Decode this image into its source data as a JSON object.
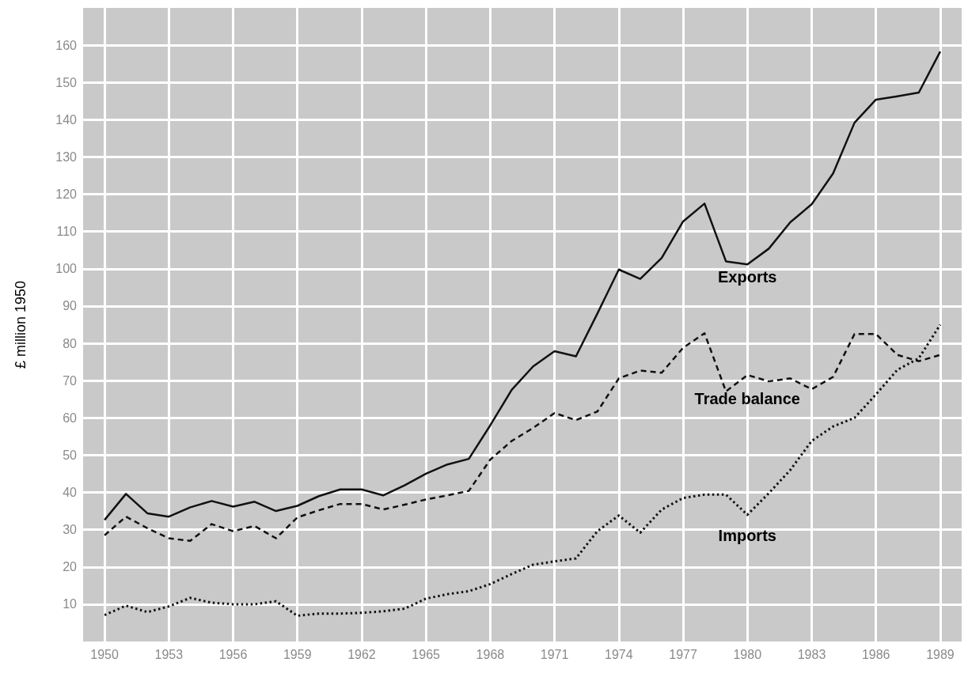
{
  "chart_data": {
    "type": "line",
    "ylabel": "£ million 1950",
    "x": [
      1950,
      1951,
      1952,
      1953,
      1954,
      1955,
      1956,
      1957,
      1958,
      1959,
      1960,
      1961,
      1962,
      1963,
      1964,
      1965,
      1966,
      1967,
      1968,
      1969,
      1970,
      1971,
      1972,
      1973,
      1974,
      1975,
      1976,
      1977,
      1978,
      1979,
      1980,
      1981,
      1982,
      1983,
      1984,
      1985,
      1986,
      1987,
      1988,
      1989
    ],
    "series": [
      {
        "name": "Exports",
        "color": "#111111",
        "line_style": "solid",
        "values": [
          32.6,
          39.6,
          34.4,
          33.5,
          36,
          37.7,
          36.2,
          37.5,
          35,
          36.4,
          39,
          40.8,
          40.8,
          39.2,
          41.9,
          45,
          47.5,
          49,
          58,
          67.5,
          73.8,
          77.9,
          76.5,
          88,
          99.8,
          97.3,
          102.9,
          112.7,
          117.5,
          102,
          101.2,
          105.4,
          112.5,
          117.3,
          125.6,
          139.2,
          145.4,
          146.3,
          147.3,
          158.3
        ]
      },
      {
        "name": "Trade balance",
        "color": "#111111",
        "line_style": "dashed",
        "values": [
          28.5,
          33.5,
          30.4,
          27.7,
          27,
          31.5,
          29.6,
          31,
          27.7,
          33.3,
          35.2,
          36.9,
          36.9,
          35.4,
          36.7,
          38.1,
          39.2,
          40.4,
          48.8,
          53.8,
          57.3,
          61.3,
          59.4,
          61.7,
          70.6,
          72.7,
          72.1,
          78.8,
          82.7,
          67.1,
          71.5,
          69.8,
          70.6,
          67.7,
          71,
          82.5,
          82.5,
          76.9,
          75.2,
          76.9
        ]
      },
      {
        "name": "Imports",
        "color": "#111111",
        "line_style": "dotted",
        "values": [
          7.1,
          9.6,
          7.9,
          9.4,
          11.7,
          10.4,
          10,
          10,
          10.8,
          6.9,
          7.5,
          7.5,
          7.7,
          8.1,
          8.8,
          11.5,
          12.7,
          13.5,
          15.4,
          18.1,
          20.6,
          21.5,
          22.3,
          29.6,
          33.8,
          29.2,
          35.4,
          38.5,
          39.4,
          39.4,
          34,
          39.8,
          46,
          53.8,
          57.7,
          60,
          66.3,
          72.9,
          76,
          85
        ]
      }
    ],
    "xlim": [
      1949,
      1990
    ],
    "xticks": [
      1950,
      1953,
      1956,
      1959,
      1962,
      1965,
      1968,
      1971,
      1974,
      1977,
      1980,
      1983,
      1986,
      1989
    ],
    "ylim": [
      0,
      170
    ],
    "yticks": [
      10,
      20,
      30,
      40,
      50,
      60,
      70,
      80,
      90,
      100,
      110,
      120,
      130,
      140,
      150,
      160
    ],
    "grid": true,
    "legend": false,
    "marker": "none"
  }
}
